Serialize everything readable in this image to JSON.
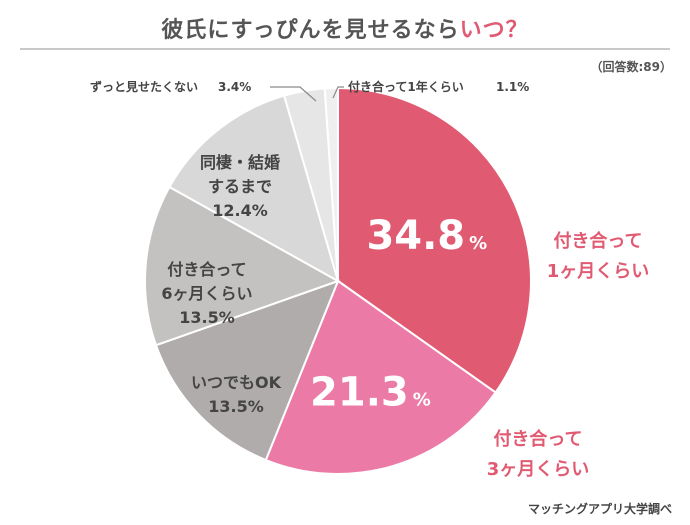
{
  "chart_data": {
    "type": "pie",
    "title_main": "彼氏にすっぴんを見せるなら",
    "title_accent": "いつ？",
    "respondents": "（回答数:89）",
    "source": "マッチングアプリ大学調べ",
    "slices": [
      {
        "label_lines": [
          "付き合って",
          "1ヶ月くらい"
        ],
        "value": 34.8,
        "value_text": "34.8",
        "unit": "%",
        "color": "#e05a72"
      },
      {
        "label_lines": [
          "付き合って",
          "3ヶ月くらい"
        ],
        "value": 21.3,
        "value_text": "21.3",
        "unit": "%",
        "color": "#eb7ba6"
      },
      {
        "label_lines": [
          "いつでもOK"
        ],
        "value": 13.5,
        "value_text": "13.5%",
        "color": "#afacab"
      },
      {
        "label_lines": [
          "付き合って",
          "6ヶ月くらい"
        ],
        "value": 13.5,
        "value_text": "13.5%",
        "color": "#c4c2c1"
      },
      {
        "label_lines": [
          "同棲・結婚",
          "するまで"
        ],
        "value": 12.4,
        "value_text": "12.4%",
        "color": "#d8d8d8"
      },
      {
        "label_lines": [
          "ずっと見せたくない"
        ],
        "value": 3.4,
        "value_text": "3.4%",
        "color": "#e6e6e6"
      },
      {
        "label_lines": [
          "付き合って1年くらい"
        ],
        "value": 1.1,
        "value_text": "1.1%",
        "color": "#efefef"
      }
    ]
  }
}
